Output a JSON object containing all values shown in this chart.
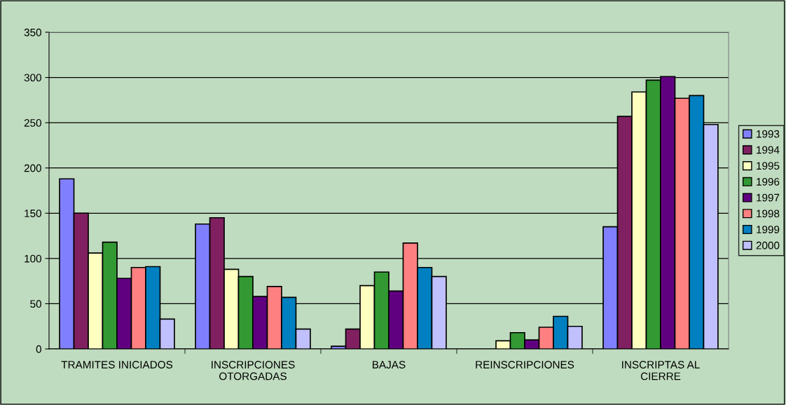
{
  "chart_data": {
    "type": "bar",
    "categories": [
      "TRAMITES INICIADOS",
      "INSCRIPCIONES OTORGADAS",
      "BAJAS",
      "REINSCRIPCIONES",
      "INSCRIPTAS AL CIERRE"
    ],
    "series": [
      {
        "name": "1993",
        "color": "#8080ff",
        "values": [
          188,
          138,
          3,
          null,
          135
        ]
      },
      {
        "name": "1994",
        "color": "#802060",
        "values": [
          150,
          145,
          22,
          null,
          257
        ]
      },
      {
        "name": "1995",
        "color": "#ffffc0",
        "values": [
          106,
          88,
          70,
          9,
          284
        ]
      },
      {
        "name": "1996",
        "color": "#339933",
        "values": [
          118,
          80,
          85,
          18,
          297
        ]
      },
      {
        "name": "1997",
        "color": "#600080",
        "values": [
          78,
          58,
          64,
          10,
          301
        ]
      },
      {
        "name": "1998",
        "color": "#ff8080",
        "values": [
          90,
          69,
          117,
          24,
          277
        ]
      },
      {
        "name": "1999",
        "color": "#0080c0",
        "values": [
          91,
          57,
          90,
          36,
          280
        ]
      },
      {
        "name": "2000",
        "color": "#c0c0ff",
        "values": [
          33,
          22,
          80,
          25,
          248
        ]
      }
    ],
    "ylim": [
      0,
      350
    ],
    "yticks": [
      0,
      50,
      100,
      150,
      200,
      250,
      300,
      350
    ],
    "grid": "y",
    "legend": "right"
  }
}
